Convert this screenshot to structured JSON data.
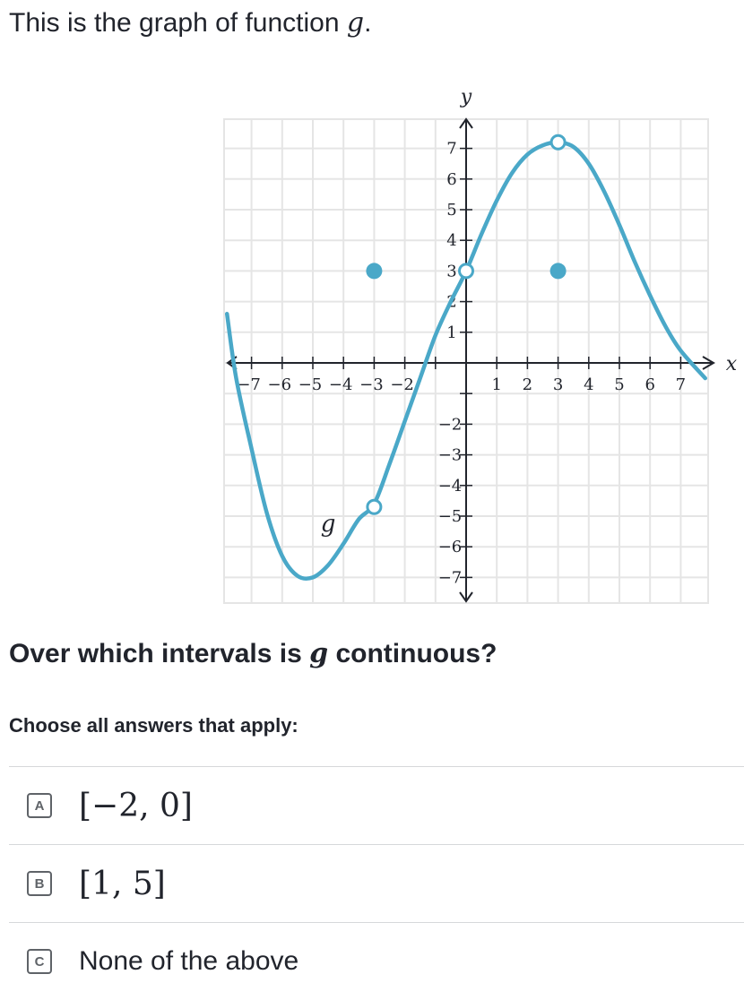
{
  "intro": {
    "text": "This is the graph of function ",
    "var": "g",
    "end": "."
  },
  "graph": {
    "x_axis_label": "x",
    "y_axis_label": "y",
    "curve_label": "g",
    "x_ticks_positive": [
      "1",
      "2",
      "3",
      "4",
      "5",
      "6",
      "7"
    ],
    "x_ticks_negative": [
      "−7",
      "−6",
      "−5",
      "−4",
      "−3",
      "−2"
    ],
    "y_ticks_positive": [
      "1",
      "2",
      "3",
      "4",
      "5",
      "6",
      "7"
    ],
    "y_ticks_negative": [
      "−2",
      "−3",
      "−4",
      "−5",
      "−6",
      "−7"
    ],
    "curve_color": "#4aa8c8",
    "grid_color": "#e5e5e5",
    "axis_color": "#21242c",
    "function": {
      "domain": [
        -7.8,
        7.8
      ],
      "curve_samples": [
        [
          -7.8,
          1.6
        ],
        [
          -7.5,
          -0.5
        ],
        [
          -7.0,
          -2.8
        ],
        [
          -6.5,
          -4.9
        ],
        [
          -6.0,
          -6.3
        ],
        [
          -5.5,
          -6.95
        ],
        [
          -5.0,
          -7.0
        ],
        [
          -4.5,
          -6.6
        ],
        [
          -4.0,
          -5.9
        ],
        [
          -3.5,
          -5.1
        ],
        [
          -3.0,
          -4.6
        ],
        [
          -2.5,
          -3.3
        ],
        [
          -2.0,
          -1.9
        ],
        [
          -1.5,
          -0.5
        ],
        [
          -1.0,
          0.9
        ],
        [
          -0.5,
          2.0
        ],
        [
          0.0,
          3.0
        ],
        [
          0.5,
          4.2
        ],
        [
          1.0,
          5.3
        ],
        [
          1.5,
          6.2
        ],
        [
          2.0,
          6.8
        ],
        [
          2.5,
          7.1
        ],
        [
          3.0,
          7.2
        ],
        [
          3.5,
          7.05
        ],
        [
          4.0,
          6.5
        ],
        [
          4.5,
          5.6
        ],
        [
          5.0,
          4.5
        ],
        [
          5.5,
          3.3
        ],
        [
          6.0,
          2.2
        ],
        [
          6.5,
          1.2
        ],
        [
          7.0,
          0.4
        ],
        [
          7.8,
          -0.5
        ]
      ],
      "open_points": [
        [
          -3,
          -4.7
        ],
        [
          0,
          3
        ],
        [
          3,
          7.2
        ]
      ],
      "closed_points": [
        [
          -3,
          3
        ],
        [
          3,
          3
        ]
      ],
      "label_position": [
        -4.5,
        -5.5
      ]
    }
  },
  "question": {
    "before": "Over which intervals is ",
    "var": "g",
    "after": " continuous?"
  },
  "instructions": "Choose all answers that apply:",
  "choices": [
    {
      "letter": "A",
      "text": "[−2, 0]"
    },
    {
      "letter": "B",
      "text": "[1, 5]"
    },
    {
      "letter": "C",
      "text": "None of the above"
    }
  ]
}
